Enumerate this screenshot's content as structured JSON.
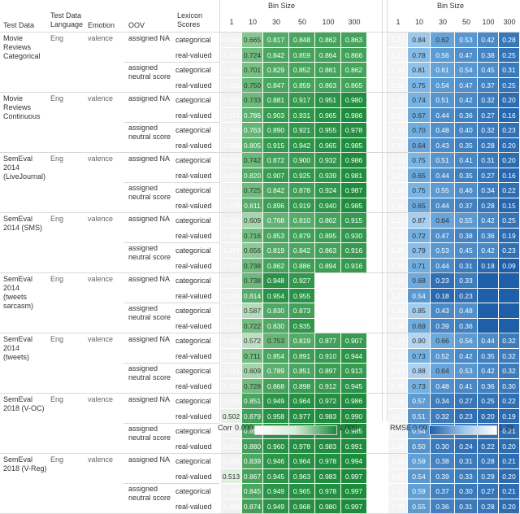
{
  "headers": {
    "test_data": "Test Data",
    "test_data_language": "Test Data\nLanguage",
    "emotion": "Emotion",
    "oov": "OOV",
    "lexicon_scores": "Lexicon\nScores",
    "bin_size_left": "Bin Size",
    "bin_size_right": "Bin Size",
    "bins": [
      "1",
      "10",
      "30",
      "50",
      "100",
      "300"
    ]
  },
  "groups": [
    {
      "name": "Movie\nReviews\nCategorical",
      "lang": "Eng",
      "emotion": "valence",
      "oov": [
        {
          "label": "assigned NA",
          "rows": [
            {
              "lex": "categorical",
              "corr": [
                "0.286",
                "0.665",
                "0.817",
                "0.848",
                "0.862",
                "0.863"
              ],
              "rmse": [
                "1.20",
                "0.84",
                "0.62",
                "0.53",
                "0.42",
                "0.28"
              ]
            },
            {
              "lex": "real-valued",
              "corr": [
                "0.329",
                "0.724",
                "0.842",
                "0.859",
                "0.864",
                "0.866"
              ],
              "rmse": [
                "1.17",
                "0.78",
                "0.56",
                "0.47",
                "0.38",
                "0.25"
              ]
            }
          ]
        },
        {
          "label": "assigned\nneutral score",
          "rows": [
            {
              "lex": "categorical",
              "corr": [
                "0.296",
                "0.701",
                "0.829",
                "0.852",
                "0.861",
                "0.862"
              ],
              "rmse": [
                "1.18",
                "0.81",
                "0.61",
                "0.54",
                "0.45",
                "0.31"
              ]
            },
            {
              "lex": "real-valued",
              "corr": [
                "0.335",
                "0.750",
                "0.847",
                "0.859",
                "0.863",
                "0.865"
              ],
              "rmse": [
                "1.16",
                "0.75",
                "0.54",
                "0.47",
                "0.37",
                "0.25"
              ]
            }
          ]
        }
      ]
    },
    {
      "name": "Movie\nReviews\nContinuous",
      "lang": "Eng",
      "emotion": "valence",
      "oov": [
        {
          "label": "assigned NA",
          "rows": [
            {
              "lex": "categorical",
              "corr": [
                "0.326",
                "0.733",
                "0.881",
                "0.917",
                "0.951",
                "0.980"
              ],
              "rmse": [
                "1.15",
                "0.74",
                "0.51",
                "0.42",
                "0.32",
                "0.20"
              ]
            },
            {
              "lex": "real-valued",
              "corr": [
                "0.374",
                "0.786",
                "0.903",
                "0.931",
                "0.965",
                "0.986"
              ],
              "rmse": [
                "1.12",
                "0.67",
                "0.44",
                "0.36",
                "0.27",
                "0.16"
              ]
            }
          ]
        },
        {
          "label": "assigned\nneutral score",
          "rows": [
            {
              "lex": "categorical",
              "corr": [
                "0.344",
                "0.763",
                "0.890",
                "0.921",
                "0.955",
                "0.978"
              ],
              "rmse": [
                "1.13",
                "0.70",
                "0.48",
                "0.40",
                "0.32",
                "0.23"
              ]
            },
            {
              "lex": "real-valued",
              "corr": [
                "0.386",
                "0.805",
                "0.915",
                "0.942",
                "0.965",
                "0.985"
              ],
              "rmse": [
                "1.11",
                "0.64",
                "0.43",
                "0.35",
                "0.28",
                "0.20"
              ]
            }
          ]
        }
      ]
    },
    {
      "name": "SemEval\n2014\n(LiveJournal)",
      "lang": "Eng",
      "emotion": "valence",
      "oov": [
        {
          "label": "assigned NA",
          "rows": [
            {
              "lex": "categorical",
              "corr": [
                "0.333",
                "0.742",
                "0.872",
                "0.900",
                "0.932",
                "0.986"
              ],
              "rmse": [
                "1.14",
                "0.75",
                "0.51",
                "0.41",
                "0.31",
                "0.20"
              ]
            },
            {
              "lex": "real-valued",
              "corr": [
                "0.404",
                "0.820",
                "0.907",
                "0.925",
                "0.939",
                "0.981"
              ],
              "rmse": [
                "1.09",
                "0.65",
                "0.44",
                "0.35",
                "0.27",
                "0.16"
              ]
            }
          ]
        },
        {
          "label": "assigned\nneutral score",
          "rows": [
            {
              "lex": "categorical",
              "corr": [
                "0.317",
                "0.725",
                "0.842",
                "0.878",
                "0.924",
                "0.987"
              ],
              "rmse": [
                "1.16",
                "0.75",
                "0.55",
                "0.46",
                "0.34",
                "0.22"
              ]
            },
            {
              "lex": "real-valued",
              "corr": [
                "0.378",
                "0.811",
                "0.896",
                "0.919",
                "0.940",
                "0.985"
              ],
              "rmse": [
                "1.11",
                "0.65",
                "0.44",
                "0.37",
                "0.28",
                "0.15"
              ]
            }
          ]
        }
      ]
    },
    {
      "name": "SemEval\n2014 (SMS)",
      "lang": "Eng",
      "emotion": "valence",
      "oov": [
        {
          "label": "assigned NA",
          "rows": [
            {
              "lex": "categorical",
              "corr": [
                "0.265",
                "0.609",
                "0.768",
                "0.810",
                "0.862",
                "0.915"
              ],
              "rmse": [
                "1.22",
                "0.87",
                "0.64",
                "0.55",
                "0.42",
                "0.25"
              ]
            },
            {
              "lex": "real-valued",
              "corr": [
                "0.343",
                "0.716",
                "0.853",
                "0.879",
                "0.895",
                "0.930"
              ],
              "rmse": [
                "1.15",
                "0.72",
                "0.47",
                "0.38",
                "0.36",
                "0.19"
              ]
            }
          ]
        },
        {
          "label": "assigned\nneutral score",
          "rows": [
            {
              "lex": "categorical",
              "corr": [
                "0.274",
                "0.656",
                "0.819",
                "0.842",
                "0.863",
                "0.916"
              ],
              "rmse": [
                "1.21",
                "0.79",
                "0.53",
                "0.45",
                "0.42",
                "0.23"
              ]
            },
            {
              "lex": "real-valued",
              "corr": [
                "0.337",
                "0.738",
                "0.862",
                "0.886",
                "0.894",
                "0.916"
              ],
              "rmse": [
                "1.15",
                "0.71",
                "0.44",
                "0.31",
                "0.18",
                "0.09"
              ]
            }
          ]
        }
      ]
    },
    {
      "name": "SemEval\n2014\n(tweets\nsarcasm)",
      "lang": "Eng",
      "emotion": "valence",
      "oov": [
        {
          "label": "assigned NA",
          "rows": [
            {
              "lex": "categorical",
              "corr": [
                "0.175",
                "0.738",
                "0.948",
                "0.927",
                "",
                ""
              ],
              "rmse": [
                "1.26",
                "0.68",
                "0.23",
                "0.33",
                "",
                ""
              ]
            },
            {
              "lex": "real-valued",
              "corr": [
                "0.234",
                "0.814",
                "0.954",
                "0.955",
                "",
                ""
              ],
              "rmse": [
                "1.21",
                "0.54",
                "0.18",
                "0.23",
                "",
                ""
              ]
            }
          ]
        },
        {
          "label": "assigned\nneutral score",
          "rows": [
            {
              "lex": "categorical",
              "corr": [
                "0.206",
                "0.587",
                "0.830",
                "0.873",
                "",
                ""
              ],
              "rmse": [
                "1.28",
                "0.85",
                "0.43",
                "0.48",
                "",
                ""
              ]
            },
            {
              "lex": "real-valued",
              "corr": [
                "0.270",
                "0.722",
                "0.830",
                "0.935",
                "",
                ""
              ],
              "rmse": [
                "1.24",
                "0.69",
                "0.39",
                "0.36",
                "",
                ""
              ]
            }
          ]
        }
      ]
    },
    {
      "name": "SemEval\n2014\n(tweets)",
      "lang": "Eng",
      "emotion": "valence",
      "oov": [
        {
          "label": "assigned NA",
          "rows": [
            {
              "lex": "categorical",
              "corr": [
                "0.231",
                "0.572",
                "0.753",
                "0.819",
                "0.877",
                "0.907"
              ],
              "rmse": [
                "1.24",
                "0.90",
                "0.66",
                "0.56",
                "0.44",
                "0.32"
              ]
            },
            {
              "lex": "real-valued",
              "corr": [
                "0.323",
                "0.711",
                "0.854",
                "0.891",
                "0.910",
                "0.944"
              ],
              "rmse": [
                "1.15",
                "0.73",
                "0.52",
                "0.42",
                "0.35",
                "0.32"
              ]
            }
          ]
        },
        {
          "label": "assigned\nneutral score",
          "rows": [
            {
              "lex": "categorical",
              "corr": [
                "0.244",
                "0.609",
                "0.789",
                "0.851",
                "0.897",
                "0.913"
              ],
              "rmse": [
                "1.24",
                "0.88",
                "0.64",
                "0.53",
                "0.42",
                "0.32"
              ]
            },
            {
              "lex": "real-valued",
              "corr": [
                "0.322",
                "0.728",
                "0.868",
                "0.898",
                "0.912",
                "0.945"
              ],
              "rmse": [
                "1.16",
                "0.73",
                "0.48",
                "0.41",
                "0.36",
                "0.30"
              ]
            }
          ]
        }
      ]
    },
    {
      "name": "SemEval\n2018 (V-OC)",
      "lang": "Eng",
      "emotion": "valence",
      "oov": [
        {
          "label": "assigned NA",
          "rows": [
            {
              "lex": "categorical",
              "corr": [
                "0.448",
                "0.851",
                "0.949",
                "0.964",
                "0.972",
                "0.986"
              ],
              "rmse": [
                "1.06",
                "0.57",
                "0.34",
                "0.27",
                "0.25",
                "0.22"
              ]
            },
            {
              "lex": "real-valued",
              "corr": [
                "0.502",
                "0.879",
                "0.958",
                "0.977",
                "0.983",
                "0.990"
              ],
              "rmse": [
                "1.01",
                "0.51",
                "0.32",
                "0.23",
                "0.20",
                "0.19"
              ]
            }
          ]
        },
        {
          "label": "assigned\nneutral score",
          "rows": [
            {
              "lex": "categorical",
              "corr": [
                "0.427",
                "0.850",
                "0.949",
                "0.966",
                "0.976",
                "0.985"
              ],
              "rmse": [
                "1.07",
                "0.54",
                "0.35",
                "0.28",
                "0.24",
                "0.21"
              ]
            },
            {
              "lex": "real-valued",
              "corr": [
                "0.476",
                "0.880",
                "0.960",
                "0.978",
                "0.983",
                "0.991"
              ],
              "rmse": [
                "1.03",
                "0.50",
                "0.30",
                "0.24",
                "0.22",
                "0.20"
              ]
            }
          ]
        }
      ]
    },
    {
      "name": "SemEval\n2018 (V-Reg)",
      "lang": "Eng",
      "emotion": "valence",
      "oov": [
        {
          "label": "assigned NA",
          "rows": [
            {
              "lex": "categorical",
              "corr": [
                "0.458",
                "0.839",
                "0.946",
                "0.964",
                "0.978",
                "0.994"
              ],
              "rmse": [
                "1.05",
                "0.59",
                "0.38",
                "0.31",
                "0.28",
                "0.21"
              ]
            },
            {
              "lex": "real-valued",
              "corr": [
                "0.513",
                "0.867",
                "0.945",
                "0.963",
                "0.983",
                "0.997"
              ],
              "rmse": [
                "1.02",
                "0.54",
                "0.39",
                "0.33",
                "0.29",
                "0.20"
              ]
            }
          ]
        },
        {
          "label": "assigned\nneutral score",
          "rows": [
            {
              "lex": "categorical",
              "corr": [
                "0.438",
                "0.845",
                "0.949",
                "0.965",
                "0.978",
                "0.997"
              ],
              "rmse": [
                "1.07",
                "0.59",
                "0.37",
                "0.30",
                "0.27",
                "0.21"
              ]
            },
            {
              "lex": "real-valued",
              "corr": [
                "0.488",
                "0.874",
                "0.949",
                "0.968",
                "0.980",
                "0.997"
              ],
              "rmse": [
                "1.03",
                "0.55",
                "0.36",
                "0.31",
                "0.28",
                "0.20"
              ]
            }
          ]
        }
      ]
    }
  ],
  "legend": {
    "corr_label": "Corr",
    "corr_min": "0.000",
    "corr_max": "1.000",
    "rmse_label": "RMSE",
    "rmse_min": "0.09",
    "rmse_max": "1.28"
  },
  "colors": {
    "corr_low": "#ffffff",
    "corr_high": "#1b8a3a",
    "rmse_low": "#1f5fa8",
    "rmse_high": "#ffffff"
  }
}
